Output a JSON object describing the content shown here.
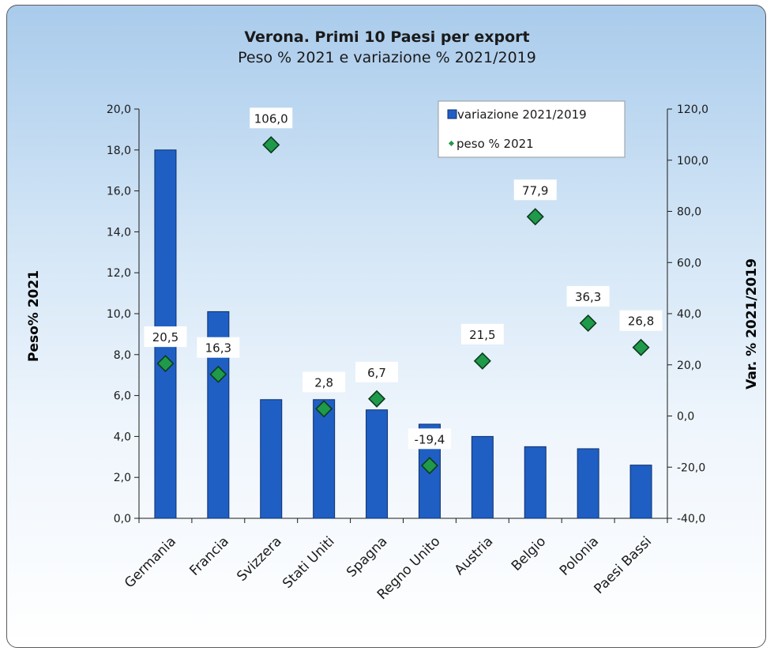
{
  "chart_data": {
    "type": "bar",
    "title": "Verona. Primi 10 Paesi per export",
    "subtitle": "Peso % 2021  e variazione %  2021/2019",
    "categories": [
      "Germania",
      "Francia",
      "Svizzera",
      "Stati Uniti",
      "Spagna",
      "Regno Unito",
      "Austria",
      "Belgio",
      "Polonia",
      "Paesi Bassi"
    ],
    "series": [
      {
        "name": "variazione 2021/2019",
        "type": "bar",
        "axis": "left",
        "color": "#1f5fc4",
        "values": [
          18.0,
          10.1,
          5.8,
          5.8,
          5.3,
          4.6,
          4.0,
          3.5,
          3.4,
          2.6
        ]
      },
      {
        "name": "peso % 2021",
        "type": "scatter",
        "axis": "right",
        "color": "#1e9a4a",
        "values": [
          20.5,
          16.3,
          106.0,
          2.8,
          6.7,
          -19.4,
          21.5,
          77.9,
          36.3,
          26.8
        ],
        "labels": [
          "20,5",
          "16,3",
          "106,0",
          "2,8",
          "6,7",
          "-19,4",
          "21,5",
          "77,9",
          "36,3",
          "26,8"
        ]
      }
    ],
    "ylabel": "Peso% 2021",
    "y2label": "Var. % 2021/2019",
    "ylim": [
      0,
      20
    ],
    "y2lim": [
      -40,
      120
    ],
    "yticks": [
      "0,0",
      "2,0",
      "4,0",
      "6,0",
      "8,0",
      "10,0",
      "12,0",
      "14,0",
      "16,0",
      "18,0",
      "20,0"
    ],
    "y2ticks": [
      "-40,0",
      "-20,0",
      "0,0",
      "20,0",
      "40,0",
      "60,0",
      "80,0",
      "100,0",
      "120,0"
    ],
    "legend_position": "top-right"
  }
}
